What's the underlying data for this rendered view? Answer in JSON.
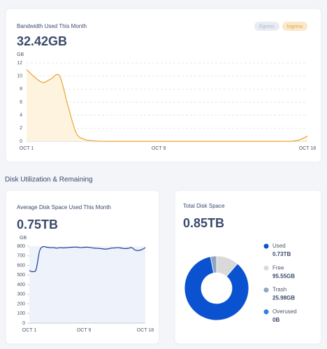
{
  "section_title": "Disk Utilization & Remaining",
  "chart_data": [
    {
      "type": "line",
      "title": "Bandwidth Used This Month",
      "headline": "32.42GB",
      "ylabel": "GB",
      "categories": [
        "OCT 1",
        null,
        null,
        null,
        null,
        null,
        null,
        null,
        null,
        null,
        null,
        null,
        null,
        null,
        null,
        null,
        "OCT 9",
        null,
        null,
        null,
        null,
        null,
        null,
        null,
        null,
        null,
        null,
        null,
        null,
        null,
        null,
        null,
        null,
        null,
        "OCT 18"
      ],
      "series": [
        {
          "name": "Egress",
          "color": "#a9b8d0",
          "values": [
            null,
            null,
            null,
            null,
            null,
            null,
            null,
            null,
            null,
            null,
            null,
            null,
            null,
            null,
            null,
            null,
            null,
            null,
            null,
            null,
            null,
            null,
            null,
            null,
            null,
            null,
            null,
            null,
            null,
            null,
            null,
            null,
            null,
            null,
            null
          ]
        },
        {
          "name": "Ingress",
          "color": "#e8a530",
          "fill": "#fef3df",
          "values": [
            11,
            9.8,
            9,
            9.6,
            10,
            5.5,
            1.3,
            0.3,
            0.1,
            0,
            0,
            0,
            0,
            0,
            0,
            0,
            0,
            0,
            0,
            0,
            0,
            0,
            0,
            0,
            0,
            0,
            0,
            0,
            0,
            0,
            0,
            0,
            0,
            0.2,
            0.8
          ]
        }
      ],
      "ylim": [
        0,
        12
      ],
      "yticks": [
        0,
        2,
        4,
        6,
        8,
        10,
        12
      ],
      "grid": true
    },
    {
      "type": "line",
      "title": "Average Disk Space Used This Month",
      "headline": "0.75TB",
      "ylabel": "GB",
      "categories": [
        "OCT 1",
        null,
        null,
        null,
        null,
        null,
        null,
        null,
        null,
        null,
        null,
        null,
        null,
        null,
        null,
        null,
        "OCT 9",
        null,
        null,
        null,
        null,
        null,
        null,
        null,
        null,
        null,
        null,
        null,
        null,
        null,
        null,
        null,
        null,
        null,
        "OCT 18"
      ],
      "series": [
        {
          "name": "Used",
          "color": "#1a3f8f",
          "values": [
            545,
            535,
            560,
            750,
            795,
            790,
            785,
            785,
            780,
            785,
            782,
            785,
            788,
            790,
            790,
            785,
            788,
            790,
            785,
            780,
            778,
            775,
            770,
            772,
            780,
            782,
            785,
            780,
            775,
            778,
            785,
            760,
            755,
            765,
            785
          ]
        }
      ],
      "plot_background": "#eef2fb",
      "ylim": [
        0,
        800
      ],
      "yticks": [
        0,
        100,
        200,
        300,
        400,
        500,
        600,
        700,
        800
      ],
      "grid": false
    },
    {
      "type": "pie",
      "title": "Total Disk Space",
      "headline": "0.85TB",
      "categories": [
        "Used",
        "Free",
        "Trash",
        "Overused"
      ],
      "values": [
        730,
        95.55,
        25.98,
        0
      ],
      "value_labels": [
        "0.73TB",
        "95.55GB",
        "25.98GB",
        "0B"
      ],
      "colors": [
        "#0b52d1",
        "#d9d9d9",
        "#8fa5c2",
        "#2f7fe8"
      ]
    }
  ]
}
